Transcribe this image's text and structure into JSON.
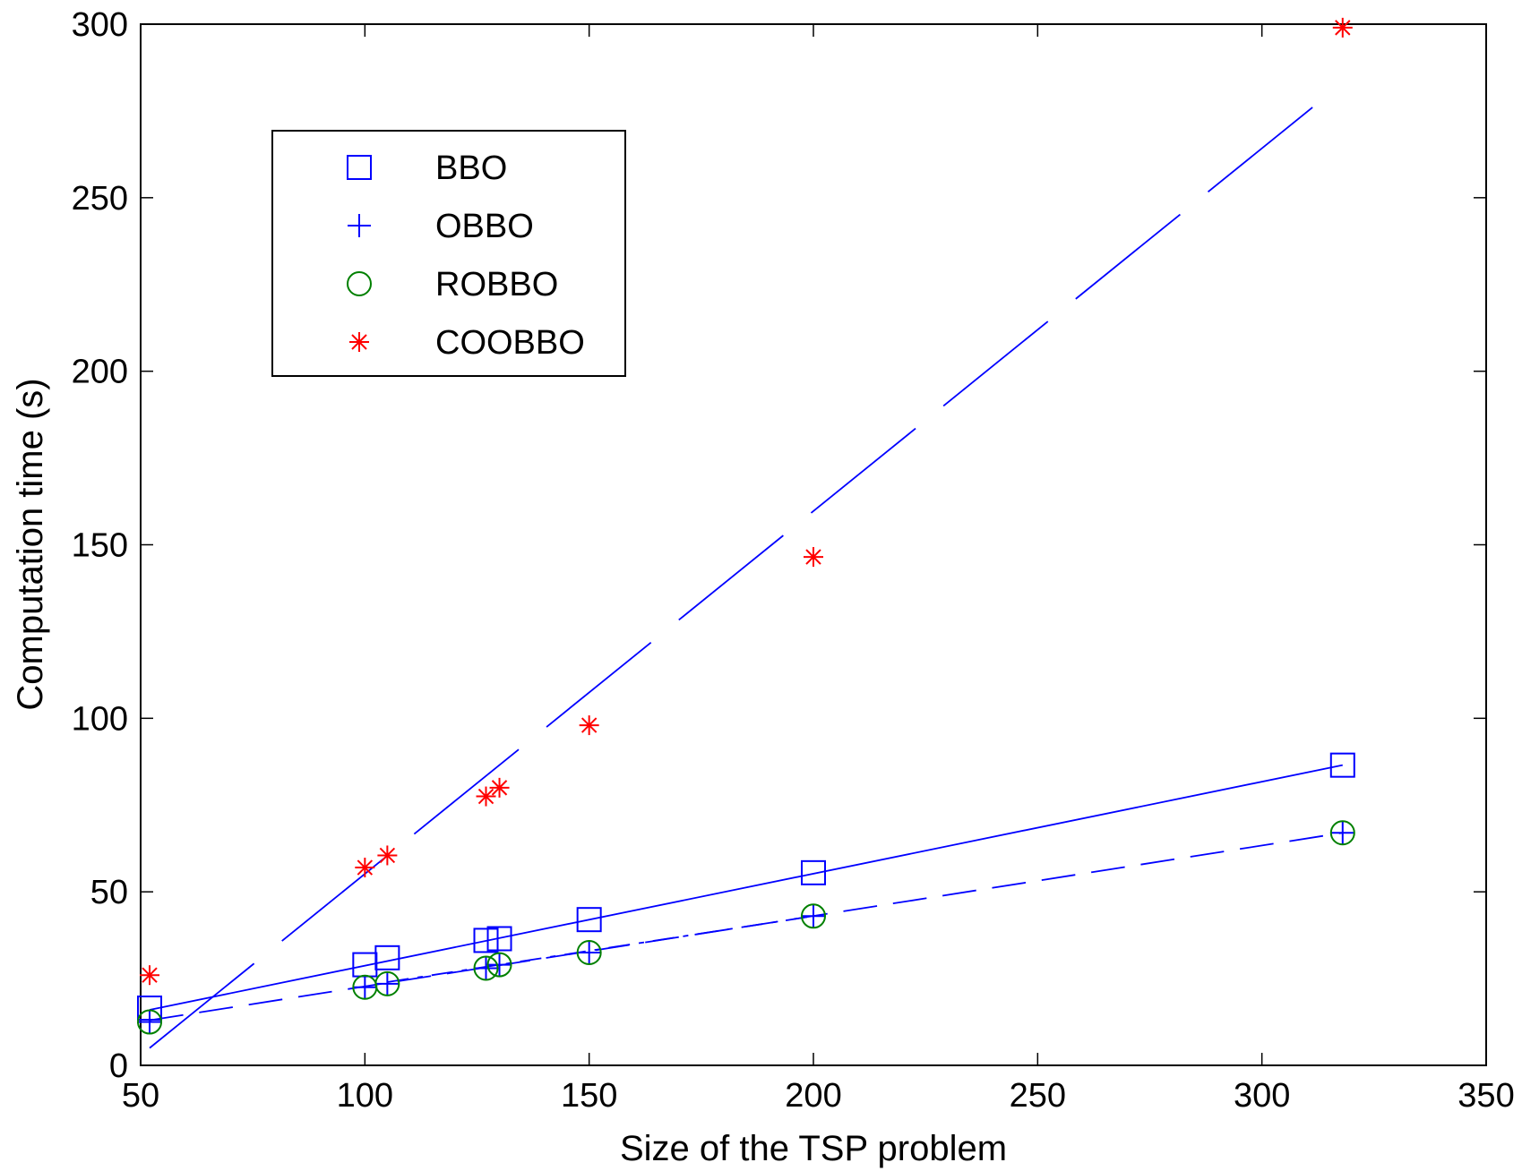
{
  "chart_data": {
    "type": "scatter",
    "title": "",
    "xlabel": "Size of the TSP problem",
    "ylabel": "Computation time (s)",
    "xlim": [
      50,
      350
    ],
    "ylim": [
      0,
      300
    ],
    "xticks": [
      50,
      100,
      150,
      200,
      250,
      300,
      350
    ],
    "yticks": [
      0,
      50,
      100,
      150,
      200,
      250,
      300
    ],
    "xtick_labels": [
      "50",
      "100",
      "150",
      "200",
      "250",
      "300",
      "350"
    ],
    "ytick_labels": [
      "0",
      "50",
      "100",
      "150",
      "200",
      "250",
      "300"
    ],
    "grid": false,
    "legend_position": "top-left",
    "x": [
      52,
      100,
      105,
      127,
      130,
      150,
      200,
      318
    ],
    "series": [
      {
        "name": "BBO",
        "marker": "square",
        "color": "#0000ff",
        "values": [
          16.5,
          29,
          31,
          36,
          36.5,
          42,
          55.5,
          86.5
        ]
      },
      {
        "name": "OBBO",
        "marker": "plus",
        "color": "#0000ff",
        "values": [
          12.5,
          22.5,
          23.5,
          28,
          29,
          32.5,
          43,
          67
        ]
      },
      {
        "name": "ROBBO",
        "marker": "circle",
        "color": "#008000",
        "values": [
          12.5,
          22.5,
          23.5,
          28,
          29,
          32.5,
          43,
          67
        ]
      },
      {
        "name": "COOBBO",
        "marker": "asterisk",
        "color": "#ff0000",
        "values": [
          26,
          57,
          60.5,
          77.5,
          80,
          98,
          146.5,
          299
        ]
      }
    ],
    "fit_lines": [
      {
        "name": "BBO fit",
        "style": "solid",
        "color": "#0000ff",
        "x": [
          52,
          318
        ],
        "y": [
          16,
          86.5
        ]
      },
      {
        "name": "OBBO fit",
        "style": "dashed",
        "color": "#0000ff",
        "x": [
          52,
          318
        ],
        "y": [
          13,
          67
        ]
      },
      {
        "name": "ROBBO fit",
        "style": "dashdot",
        "color": "#0000ff",
        "x": [
          105,
          200
        ],
        "y": [
          24,
          43
        ]
      },
      {
        "name": "COOBBO fit",
        "style": "longdash",
        "color": "#0000ff",
        "x": [
          52,
          317
        ],
        "y": [
          5,
          282
        ]
      }
    ]
  }
}
